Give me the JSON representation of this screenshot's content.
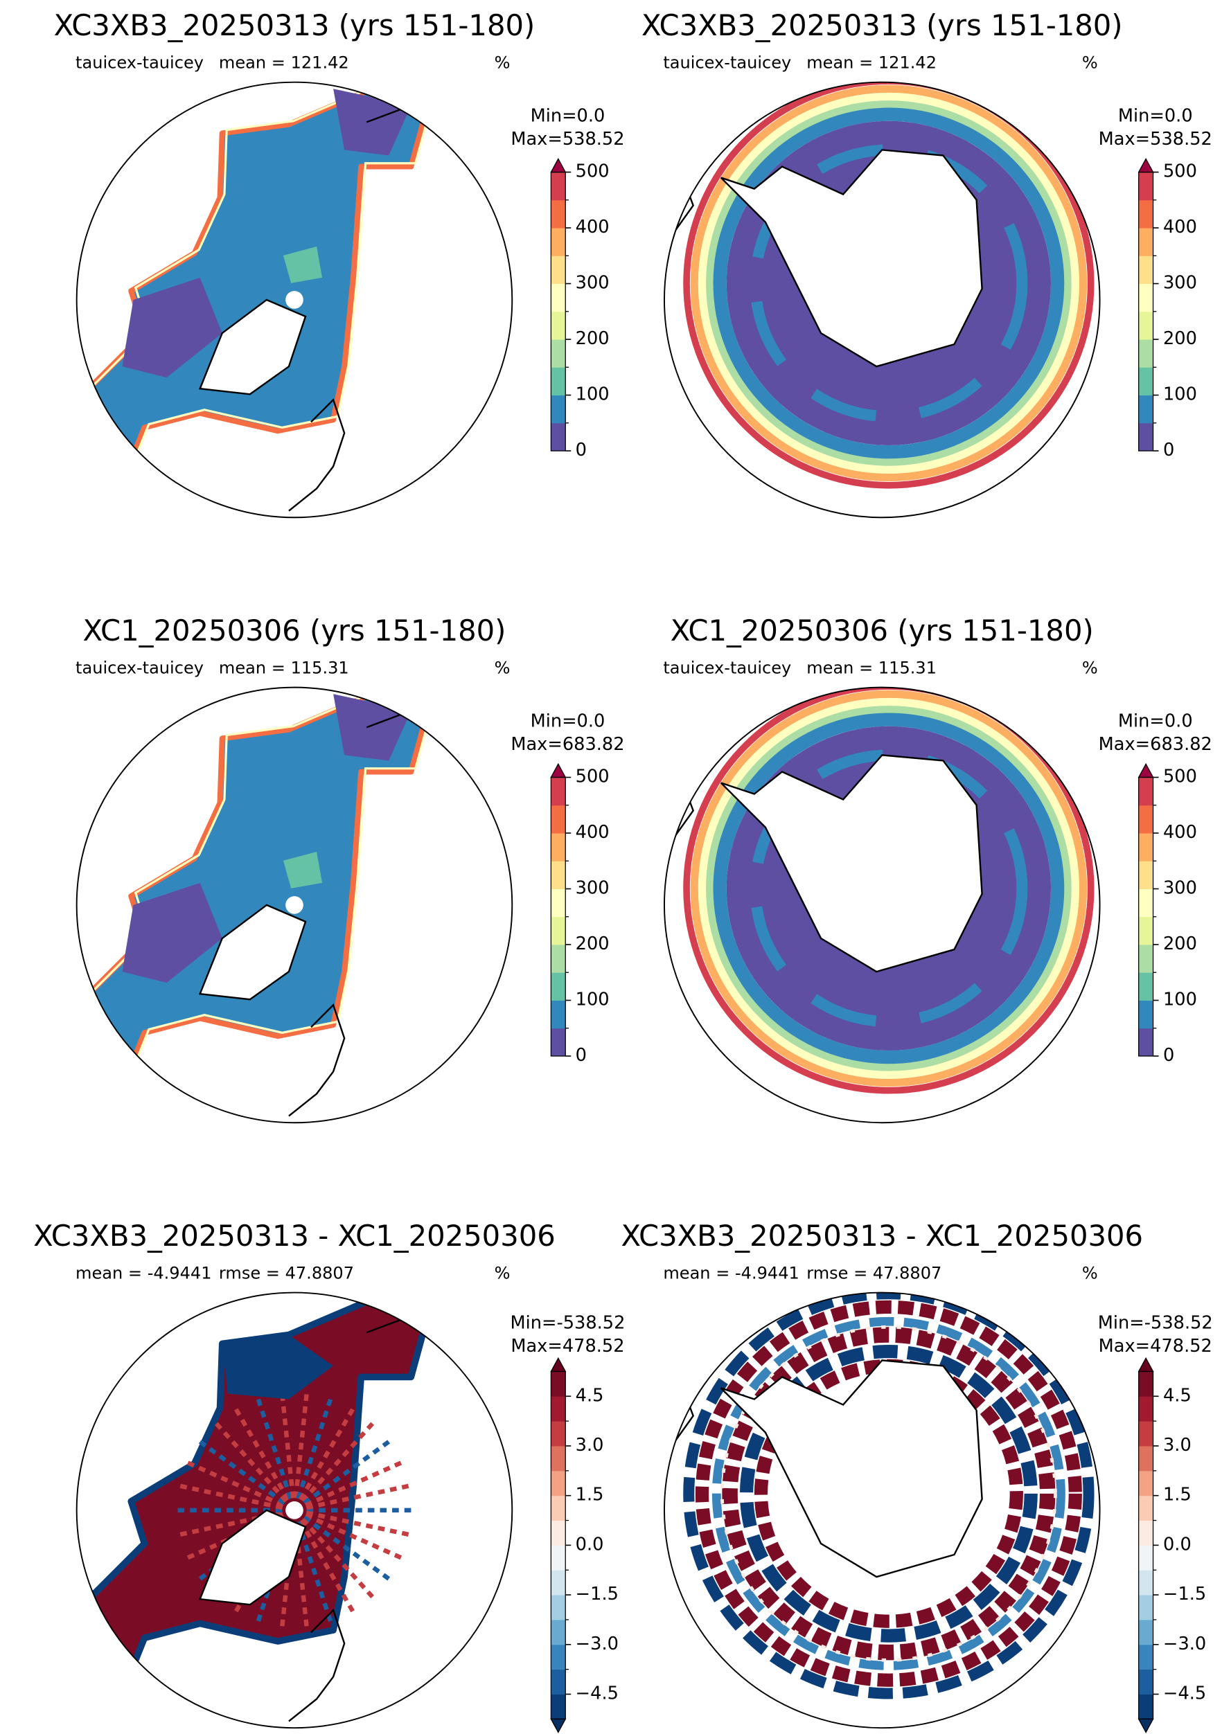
{
  "chart_data": [
    {
      "type": "map",
      "hemisphere": "north",
      "title": "XC3XB3_20250313 (yrs 151-180)",
      "left_label": "tauicex-tauicey",
      "center_label": "mean = 121.42",
      "units": "%",
      "min_label": "Min=0.0",
      "max_label": "Max=538.52",
      "clim": [
        0,
        500
      ],
      "cticks": [
        0,
        100,
        200,
        300,
        400,
        500
      ],
      "cminorticks": [
        50,
        150,
        250,
        350,
        450
      ],
      "colors": [
        "#5e4fa2",
        "#3288bd",
        "#66c2a5",
        "#abdda4",
        "#e6f598",
        "#ffffbf",
        "#fee08b",
        "#fdae61",
        "#f46d43",
        "#d53e4f"
      ],
      "over_color": "#9e0142"
    },
    {
      "type": "map",
      "hemisphere": "south",
      "title": "XC3XB3_20250313 (yrs 151-180)",
      "left_label": "tauicex-tauicey",
      "center_label": "mean = 121.42",
      "units": "%",
      "min_label": "Min=0.0",
      "max_label": "Max=538.52",
      "clim": [
        0,
        500
      ],
      "cticks": [
        0,
        100,
        200,
        300,
        400,
        500
      ],
      "cminorticks": [
        50,
        150,
        250,
        350,
        450
      ],
      "colors": [
        "#5e4fa2",
        "#3288bd",
        "#66c2a5",
        "#abdda4",
        "#e6f598",
        "#ffffbf",
        "#fee08b",
        "#fdae61",
        "#f46d43",
        "#d53e4f"
      ],
      "over_color": "#9e0142"
    },
    {
      "type": "map",
      "hemisphere": "north",
      "title": "XC1_20250306 (yrs 151-180)",
      "left_label": "tauicex-tauicey",
      "center_label": "mean = 115.31",
      "units": "%",
      "min_label": "Min=0.0",
      "max_label": "Max=683.82",
      "clim": [
        0,
        500
      ],
      "cticks": [
        0,
        100,
        200,
        300,
        400,
        500
      ],
      "cminorticks": [
        50,
        150,
        250,
        350,
        450
      ],
      "colors": [
        "#5e4fa2",
        "#3288bd",
        "#66c2a5",
        "#abdda4",
        "#e6f598",
        "#ffffbf",
        "#fee08b",
        "#fdae61",
        "#f46d43",
        "#d53e4f"
      ],
      "over_color": "#9e0142"
    },
    {
      "type": "map",
      "hemisphere": "south",
      "title": "XC1_20250306 (yrs 151-180)",
      "left_label": "tauicex-tauicey",
      "center_label": "mean = 115.31",
      "units": "%",
      "min_label": "Min=0.0",
      "max_label": "Max=683.82",
      "clim": [
        0,
        500
      ],
      "cticks": [
        0,
        100,
        200,
        300,
        400,
        500
      ],
      "cminorticks": [
        50,
        150,
        250,
        350,
        450
      ],
      "colors": [
        "#5e4fa2",
        "#3288bd",
        "#66c2a5",
        "#abdda4",
        "#e6f598",
        "#ffffbf",
        "#fee08b",
        "#fdae61",
        "#f46d43",
        "#d53e4f"
      ],
      "over_color": "#9e0142"
    },
    {
      "type": "map",
      "hemisphere": "north",
      "title": "XC3XB3_20250313 - XC1_20250306",
      "left_label": "mean = -4.9441",
      "center_label": "rmse = 47.8807",
      "units": "%",
      "min_label": "Min=-538.52",
      "max_label": "Max=478.52",
      "clim": [
        -5.25,
        5.25
      ],
      "cticks": [
        {
          "value": -4.5,
          "label": "−4.5"
        },
        {
          "value": -3,
          "label": "−3.0"
        },
        {
          "value": -1.5,
          "label": "−1.5"
        },
        {
          "value": 0,
          "label": "0.0"
        },
        1.5,
        {
          "value": 3,
          "label": "3.0"
        },
        4.5
      ],
      "cminorticks": [
        -3.75,
        -2.25,
        -0.75,
        0.75,
        2.25,
        3.75
      ],
      "colors": [
        "#0b3d79",
        "#1c5e9f",
        "#3a84bc",
        "#6aaad0",
        "#a2cde3",
        "#d3e6f0",
        "#f1f4f6",
        "#fbebe3",
        "#fbcbb3",
        "#f3a283",
        "#df725e",
        "#c33d41",
        "#a11a30",
        "#7a0c25"
      ],
      "over_color": "#67001f",
      "under_color": "#053061"
    },
    {
      "type": "map",
      "hemisphere": "south",
      "title": "XC3XB3_20250313 - XC1_20250306",
      "left_label": "mean = -4.9441",
      "center_label": "rmse = 47.8807",
      "units": "%",
      "min_label": "Min=-538.52",
      "max_label": "Max=478.52",
      "clim": [
        -5.25,
        5.25
      ],
      "cticks": [
        {
          "value": -4.5,
          "label": "−4.5"
        },
        {
          "value": -3,
          "label": "−3.0"
        },
        {
          "value": -1.5,
          "label": "−1.5"
        },
        {
          "value": 0,
          "label": "0.0"
        },
        1.5,
        {
          "value": 3,
          "label": "3.0"
        },
        4.5
      ],
      "cminorticks": [
        -3.75,
        -2.25,
        -0.75,
        0.75,
        2.25,
        3.75
      ],
      "colors": [
        "#0b3d79",
        "#1c5e9f",
        "#3a84bc",
        "#6aaad0",
        "#a2cde3",
        "#d3e6f0",
        "#f1f4f6",
        "#fbebe3",
        "#fbcbb3",
        "#f3a283",
        "#df725e",
        "#c33d41",
        "#a11a30",
        "#7a0c25"
      ],
      "over_color": "#67001f",
      "under_color": "#053061"
    }
  ]
}
